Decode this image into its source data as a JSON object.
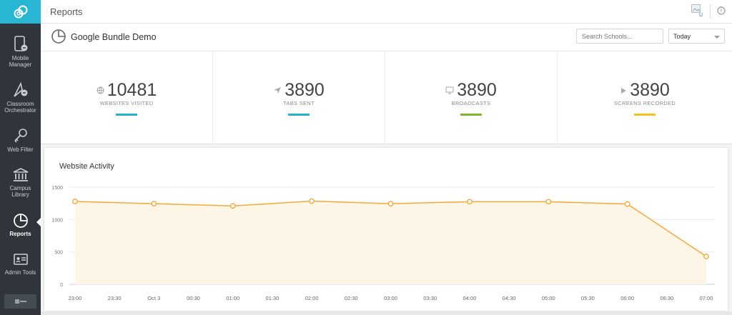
{
  "topbar": {
    "title": "Reports"
  },
  "sidebar": {
    "items": [
      {
        "label": "Mobile Manager",
        "icon": "mobile-icon"
      },
      {
        "label": "Classroom Orchestrator",
        "icon": "orchestrator-icon"
      },
      {
        "label": "Web Filter",
        "icon": "key-icon"
      },
      {
        "label": "Campus Library",
        "icon": "library-icon"
      },
      {
        "label": "Reports",
        "icon": "pie-chart-icon",
        "active": true
      },
      {
        "label": "Admin Tools",
        "icon": "admin-icon"
      }
    ]
  },
  "subheader": {
    "title": "Google Bundle Demo",
    "search_placeholder": "Search Schools...",
    "range_selected": "Today"
  },
  "stats": [
    {
      "value": "10481",
      "label": "WEBSITES VISITED",
      "icon": "globe-icon",
      "color": "#23b4d0"
    },
    {
      "value": "3890",
      "label": "TABS SENT",
      "icon": "send-icon",
      "color": "#23b4d0"
    },
    {
      "value": "3890",
      "label": "BROADCASTS",
      "icon": "monitor-icon",
      "color": "#7cb82f"
    },
    {
      "value": "3890",
      "label": "SCREENS RECORDED",
      "icon": "play-icon",
      "color": "#f5c11b"
    }
  ],
  "card": {
    "title": "Website Activity"
  },
  "chart_data": {
    "type": "area",
    "x": [
      "23:00",
      "23:30",
      "Oct 3",
      "00:30",
      "01:00",
      "01:30",
      "02:00",
      "02:30",
      "03:00",
      "03:30",
      "04:00",
      "04:30",
      "05:00",
      "05:30",
      "06:00",
      "06:30",
      "07:00"
    ],
    "y_ticks": [
      0,
      500,
      1000,
      1500
    ],
    "ylim": [
      0,
      1500
    ],
    "points": [
      {
        "x": "23:00",
        "y": 1280
      },
      {
        "x": "Oct 3",
        "y": 1245
      },
      {
        "x": "01:00",
        "y": 1210
      },
      {
        "x": "02:00",
        "y": 1285
      },
      {
        "x": "03:00",
        "y": 1245
      },
      {
        "x": "04:00",
        "y": 1275
      },
      {
        "x": "05:00",
        "y": 1275
      },
      {
        "x": "06:00",
        "y": 1240
      },
      {
        "x": "07:00",
        "y": 430
      }
    ],
    "line_color": "#f6a938",
    "fill_color": "#fdf6e6",
    "grid": true
  }
}
